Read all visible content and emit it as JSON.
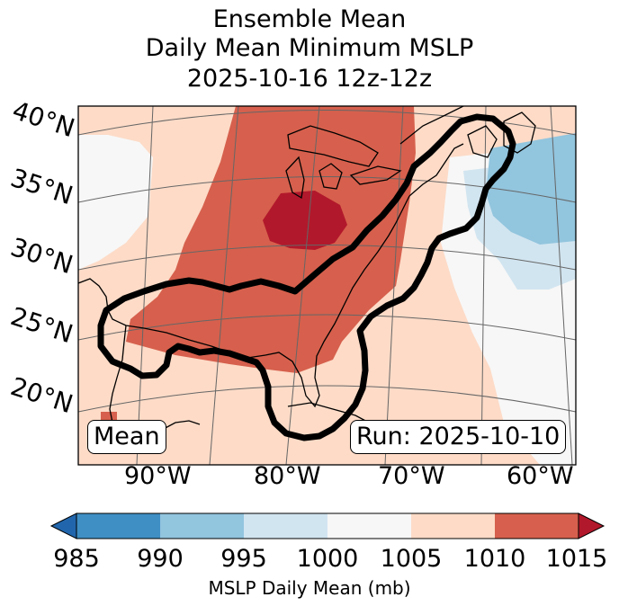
{
  "title": {
    "line1": "Ensemble Mean",
    "line2": "Daily Mean Minimum MSLP",
    "line3": "2025-10-16 12z-12z"
  },
  "lat_labels": [
    "40°N",
    "35°N",
    "30°N",
    "25°N",
    "20°N"
  ],
  "lon_labels": [
    "90°W",
    "80°W",
    "70°W",
    "60°W"
  ],
  "annotations": {
    "mean_label": "Mean",
    "run_label": "Run: 2025-10-10"
  },
  "colorbar": {
    "ticks": [
      "985",
      "990",
      "995",
      "1000",
      "1005",
      "1010",
      "1015"
    ],
    "label": "MSLP Daily Mean (mb)",
    "colors": [
      "#2166ac",
      "#3f8fc4",
      "#92c5de",
      "#d1e5f0",
      "#f7f7f7",
      "#fddbc7",
      "#d6604d",
      "#b2182b"
    ]
  },
  "map": {
    "region": "Eastern United States, Gulf of Mexico and Western Atlantic",
    "contour_color": "#000000"
  }
}
